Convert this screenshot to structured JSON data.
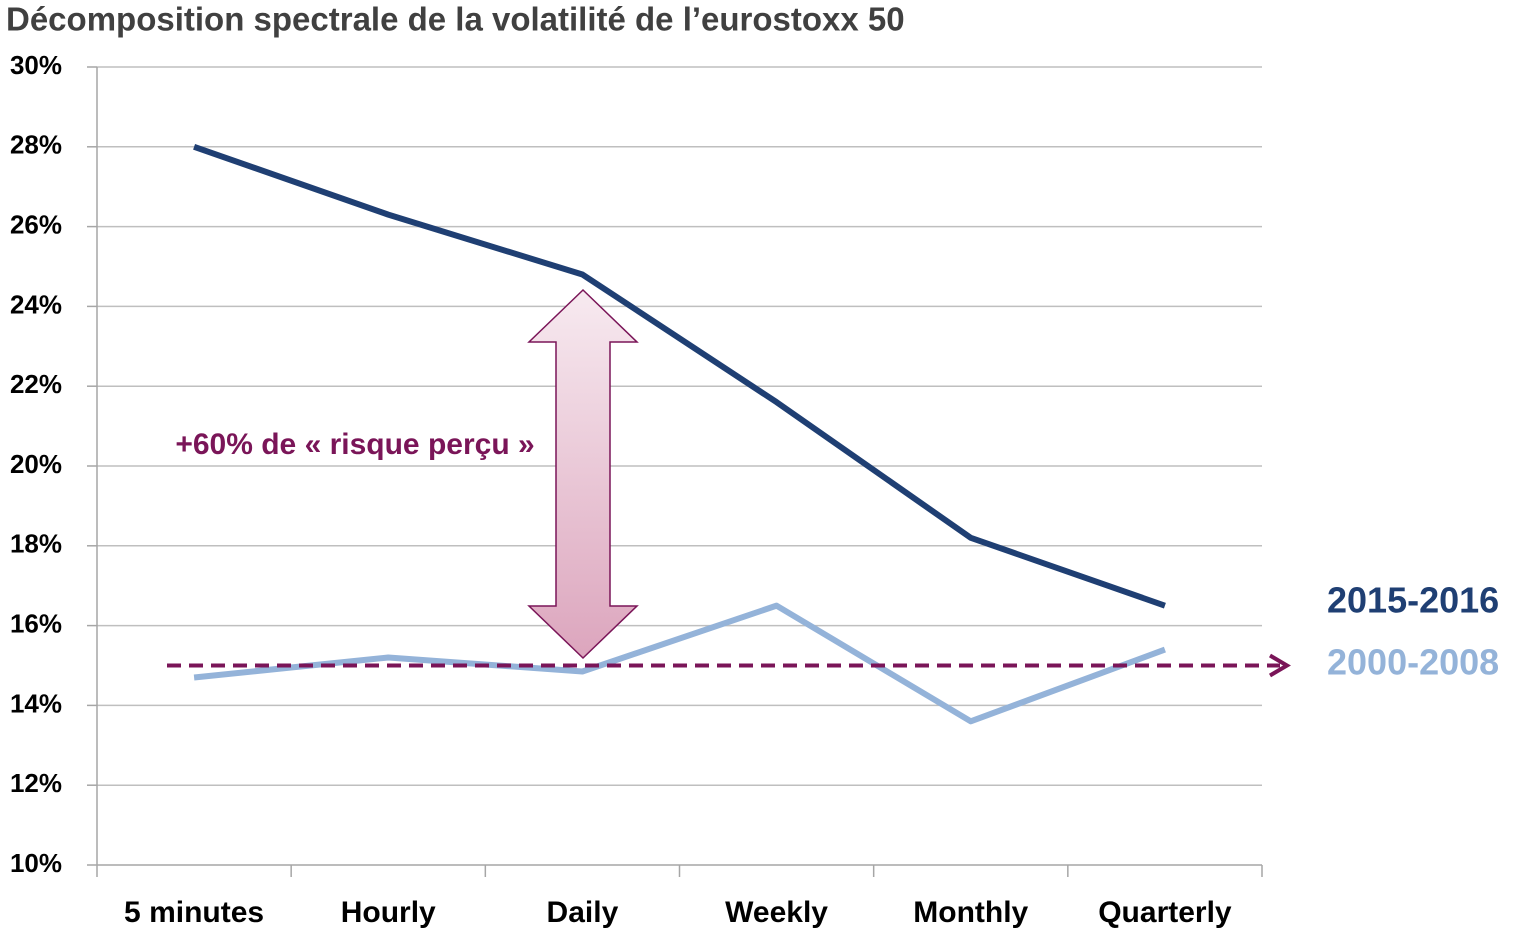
{
  "chart_data": {
    "type": "line",
    "title": "Décomposition spectrale de la volatilité de l’eurostoxx 50",
    "categories": [
      "5 minutes",
      "Hourly",
      "Daily",
      "Weekly",
      "Monthly",
      "Quarterly"
    ],
    "series": [
      {
        "name": "2015-2016",
        "color": "#1f3f73",
        "values": [
          28,
          26.3,
          24.8,
          21.6,
          18.2,
          16.5
        ]
      },
      {
        "name": "2000-2008",
        "color": "#94b3d9",
        "values": [
          14.7,
          15.2,
          14.85,
          16.5,
          13.6,
          15.4
        ]
      }
    ],
    "reference_value": 15,
    "reference_color": "#7a1558",
    "annotation": "+60% de « risque perçu »",
    "ylim": [
      10,
      30
    ],
    "yticks": [
      {
        "value": 10,
        "label": "10%"
      },
      {
        "value": 12,
        "label": "12%"
      },
      {
        "value": 14,
        "label": "14%"
      },
      {
        "value": 16,
        "label": "16%"
      },
      {
        "value": 18,
        "label": "18%"
      },
      {
        "value": 20,
        "label": "20%"
      },
      {
        "value": 22,
        "label": "22%"
      },
      {
        "value": 24,
        "label": "24%"
      },
      {
        "value": 26,
        "label": "26%"
      },
      {
        "value": 28,
        "label": "28%"
      },
      {
        "value": 30,
        "label": "30%"
      }
    ],
    "grid": true
  }
}
